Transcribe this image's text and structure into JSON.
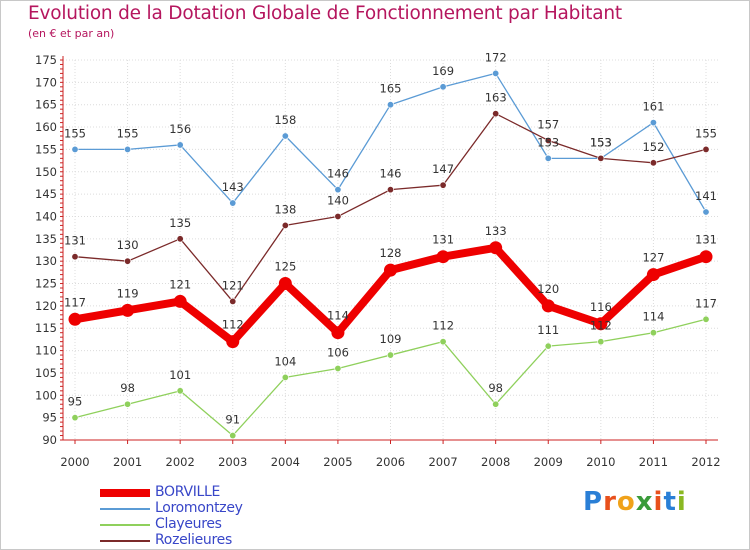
{
  "header": {
    "title": "Evolution de la Dotation Globale de Fonctionnement par Habitant",
    "subtitle": "(en € et par an)"
  },
  "logo": {
    "text": "Proxiti",
    "letter_colors": [
      "#2a7fd6",
      "#e8501c",
      "#f0a21a",
      "#3a9b3a",
      "#e8501c",
      "#2a7fd6",
      "#8ab822"
    ]
  },
  "chart_data": {
    "type": "line",
    "title": "Evolution de la Dotation Globale de Fonctionnement par Habitant",
    "subtitle": "(en € et par an)",
    "x": [
      "2000",
      "2001",
      "2002",
      "2003",
      "2004",
      "2005",
      "2006",
      "2007",
      "2008",
      "2009",
      "2010",
      "2011",
      "2012"
    ],
    "ylim": [
      90,
      175
    ],
    "yticks": [
      90,
      95,
      100,
      105,
      110,
      115,
      120,
      125,
      130,
      135,
      140,
      145,
      150,
      155,
      160,
      165,
      170,
      175
    ],
    "grid": true,
    "legend_position": "bottom-left",
    "series": [
      {
        "name": "BORVILLE",
        "color": "#ee0000",
        "values": [
          117,
          119,
          121,
          112,
          125,
          114,
          128,
          131,
          133,
          120,
          116,
          127,
          131
        ]
      },
      {
        "name": "Loromontzey",
        "color": "#5b9bd5",
        "values": [
          155,
          155,
          156,
          143,
          158,
          146,
          165,
          169,
          172,
          153,
          153,
          161,
          141
        ]
      },
      {
        "name": "Clayeures",
        "color": "#8fd05c",
        "values": [
          95,
          98,
          101,
          91,
          104,
          106,
          109,
          112,
          98,
          111,
          112,
          114,
          117
        ]
      },
      {
        "name": "Rozelieures",
        "color": "#7b2a2a",
        "values": [
          131,
          130,
          135,
          121,
          138,
          140,
          146,
          147,
          163,
          157,
          153,
          152,
          155
        ]
      }
    ]
  }
}
